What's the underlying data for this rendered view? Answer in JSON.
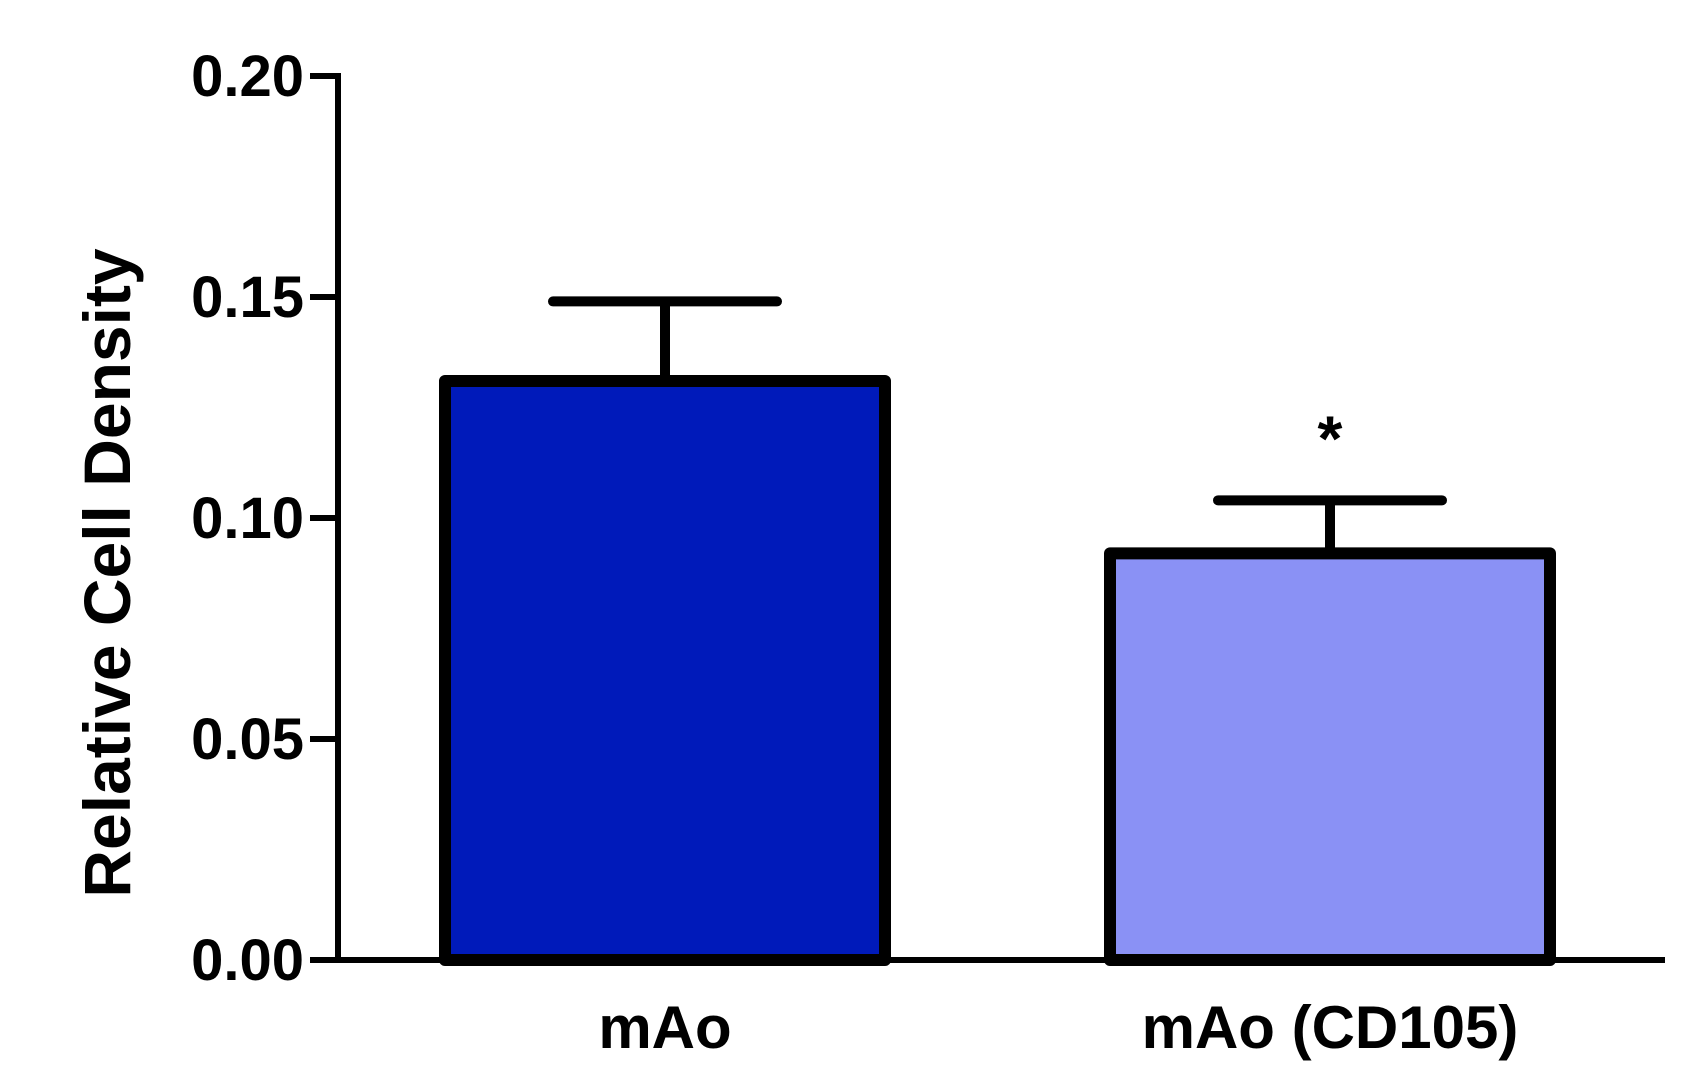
{
  "chart_data": {
    "type": "bar",
    "categories": [
      "mAo",
      "mAo (CD105)"
    ],
    "values": [
      0.131,
      0.092
    ],
    "error_upper": [
      0.149,
      0.104
    ],
    "annotations": [
      "",
      "*"
    ],
    "ylabel": "Relative Cell Density",
    "xlabel": "",
    "ylim": [
      0,
      0.2
    ],
    "yticks": [
      0.0,
      0.05,
      0.1,
      0.15,
      0.2
    ],
    "ytick_labels": [
      "0.00",
      "0.05",
      "0.10",
      "0.15",
      "0.20"
    ],
    "grid": false,
    "legend": "none",
    "colors": {
      "bars": [
        "#001ABA",
        "#8A91F5"
      ],
      "outline": "#000000"
    }
  }
}
